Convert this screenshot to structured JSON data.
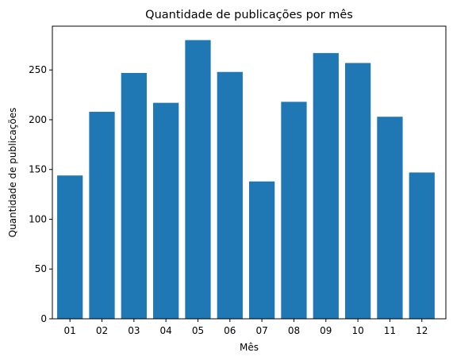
{
  "chart_data": {
    "type": "bar",
    "title": "Quantidade de publicações por mês",
    "xlabel": "Mês",
    "ylabel": "Quantidade de publicações",
    "categories": [
      "01",
      "02",
      "03",
      "04",
      "05",
      "06",
      "07",
      "08",
      "09",
      "10",
      "11",
      "12"
    ],
    "values": [
      144,
      208,
      247,
      217,
      280,
      248,
      138,
      218,
      267,
      257,
      203,
      147
    ],
    "ylim": [
      0,
      294
    ],
    "yticks": [
      0,
      50,
      100,
      150,
      200,
      250
    ],
    "grid": false,
    "bar_color": "#1f77b4"
  }
}
